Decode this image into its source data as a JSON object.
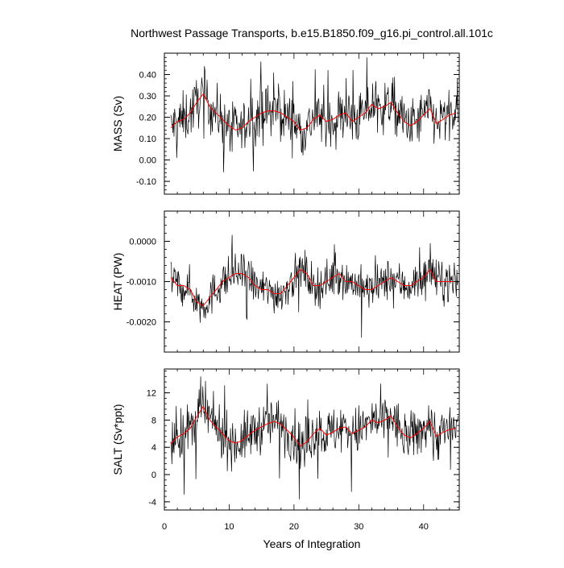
{
  "chart_data": {
    "type": "line",
    "title": "Northwest Passage Transports, b.e15.B1850.f09_g16.pi_control.all.101c",
    "xlabel": "Years of Integration",
    "x_range": [
      0,
      45.5
    ],
    "x_ticks": [
      "0",
      "10",
      "20",
      "30",
      "40"
    ],
    "x_tick_values": [
      0,
      10,
      20,
      30,
      40
    ],
    "series_colors": {
      "monthly": "#000000",
      "smoothed": "#ff0000"
    },
    "panels": [
      {
        "ylabel": "MASS (Sv)",
        "ylim": [
          -0.16,
          0.5
        ],
        "y_ticks": [
          "0.40",
          "0.30",
          "0.20",
          "0.10",
          "0.00",
          "-0.10"
        ],
        "y_tick_values": [
          0.4,
          0.3,
          0.2,
          0.1,
          0.0,
          -0.1
        ],
        "smoothed_x": [
          1,
          2,
          3,
          4,
          5,
          6,
          7,
          8,
          9,
          10,
          11,
          12,
          13,
          14,
          15,
          16,
          17,
          18,
          19,
          20,
          21,
          22,
          23,
          24,
          25,
          26,
          27,
          28,
          29,
          30,
          31,
          32,
          33,
          34,
          35,
          36,
          37,
          38,
          39,
          40,
          41,
          42,
          43,
          44,
          45
        ],
        "smoothed_y": [
          0.15,
          0.18,
          0.19,
          0.22,
          0.27,
          0.31,
          0.25,
          0.22,
          0.19,
          0.16,
          0.14,
          0.15,
          0.18,
          0.2,
          0.22,
          0.23,
          0.23,
          0.22,
          0.2,
          0.18,
          0.14,
          0.15,
          0.19,
          0.21,
          0.18,
          0.19,
          0.21,
          0.22,
          0.18,
          0.2,
          0.22,
          0.26,
          0.24,
          0.25,
          0.27,
          0.22,
          0.18,
          0.16,
          0.18,
          0.21,
          0.24,
          0.17,
          0.19,
          0.21,
          0.22
        ],
        "monthly_mean": 0.19,
        "monthly_spread": 0.085,
        "monthly_min": -0.15,
        "monthly_max": 0.48
      },
      {
        "ylabel": "HEAT (PW)",
        "ylim": [
          -0.00275,
          0.00075
        ],
        "y_ticks": [
          "0.0000",
          "-0.0010",
          "-0.0020"
        ],
        "y_tick_values": [
          0.0,
          -0.001,
          -0.002
        ],
        "smoothed_x": [
          1,
          2,
          3,
          4,
          5,
          6,
          7,
          8,
          9,
          10,
          11,
          12,
          13,
          14,
          15,
          16,
          17,
          18,
          19,
          20,
          21,
          22,
          23,
          24,
          25,
          26,
          27,
          28,
          29,
          30,
          31,
          32,
          33,
          34,
          35,
          36,
          37,
          38,
          39,
          40,
          41,
          42,
          43,
          44,
          45
        ],
        "smoothed_y": [
          -0.0009,
          -0.0011,
          -0.0011,
          -0.0012,
          -0.0015,
          -0.0016,
          -0.0014,
          -0.0012,
          -0.001,
          -0.0009,
          -0.0008,
          -0.0008,
          -0.0009,
          -0.0011,
          -0.0012,
          -0.0012,
          -0.0013,
          -0.0013,
          -0.0011,
          -0.0009,
          -0.0007,
          -0.0008,
          -0.0011,
          -0.0011,
          -0.001,
          -0.0009,
          -0.0008,
          -0.001,
          -0.001,
          -0.0011,
          -0.0012,
          -0.0012,
          -0.0011,
          -0.001,
          -0.0009,
          -0.001,
          -0.0011,
          -0.0011,
          -0.001,
          -0.0009,
          -0.0007,
          -0.001,
          -0.001,
          -0.001,
          -0.001
        ],
        "monthly_mean": -0.00105,
        "monthly_spread": 0.00035,
        "monthly_min": -0.0025,
        "monthly_max": 0.0007
      },
      {
        "ylabel": "SALT (Sv*ppt)",
        "ylim": [
          -5.2,
          15.5
        ],
        "y_ticks": [
          "12",
          "8",
          "4",
          "0",
          "-4"
        ],
        "y_tick_values": [
          12,
          8,
          4,
          0,
          -4
        ],
        "smoothed_x": [
          1,
          2,
          3,
          4,
          5,
          6,
          7,
          8,
          9,
          10,
          11,
          12,
          13,
          14,
          15,
          16,
          17,
          18,
          19,
          20,
          21,
          22,
          23,
          24,
          25,
          26,
          27,
          28,
          29,
          30,
          31,
          32,
          33,
          34,
          35,
          36,
          37,
          38,
          39,
          40,
          41,
          42,
          43,
          44,
          45
        ],
        "smoothed_y": [
          4.5,
          5.5,
          6.0,
          6.8,
          8.5,
          10.0,
          8.0,
          7.0,
          6.0,
          5.0,
          4.6,
          5.0,
          5.8,
          6.5,
          7.0,
          7.5,
          7.8,
          7.4,
          6.5,
          5.5,
          4.2,
          4.8,
          6.0,
          6.8,
          5.8,
          6.2,
          6.8,
          7.0,
          6.0,
          6.5,
          7.0,
          8.0,
          7.6,
          8.0,
          8.6,
          7.0,
          5.8,
          5.4,
          6.0,
          6.8,
          7.8,
          5.6,
          6.2,
          6.6,
          6.8
        ],
        "monthly_mean": 6.2,
        "monthly_spread": 2.6,
        "monthly_min": -5.0,
        "monthly_max": 15.0
      }
    ]
  }
}
